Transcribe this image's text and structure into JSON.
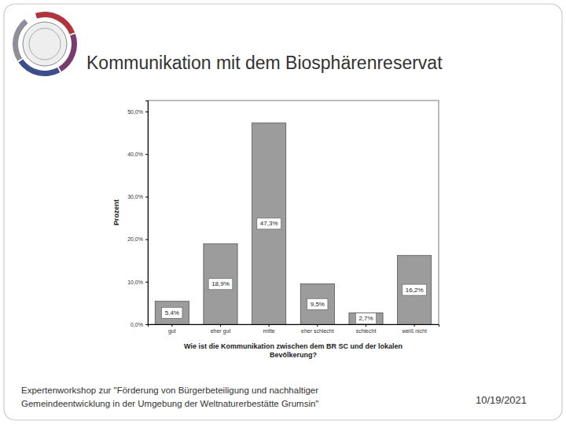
{
  "chart_data": {
    "type": "bar",
    "title": "Kommunikation mit dem Biosphärenreservat",
    "x_label": "Wie ist die Kommunikation zwischen dem BR SC und der lokalen Bevölkerung?",
    "y_label": "Prozent",
    "categories": [
      "gut",
      "eher gut",
      "mitte",
      "eher schlecht",
      "schlecht",
      "weiß nicht"
    ],
    "values": [
      5.4,
      18.9,
      47.3,
      9.5,
      2.7,
      16.2
    ],
    "value_labels": [
      "5,4%",
      "18,9%",
      "47,3%",
      "9,5%",
      "2,7%",
      "16,2%"
    ],
    "color": "#9c9c9c",
    "ylim": [
      0,
      52.6
    ],
    "yticks": [
      {
        "value": 0,
        "label": "0,0%"
      },
      {
        "value": 10,
        "label": "10,0%"
      },
      {
        "value": 20,
        "label": "20,0%"
      },
      {
        "value": 30,
        "label": "30,0%"
      },
      {
        "value": 40,
        "label": "40,0%"
      },
      {
        "value": 50,
        "label": "50,0%"
      }
    ],
    "grid": false,
    "data_labels": true,
    "annotations": [
      "Expertenworkshop zur \"Förderung von Bürgerbeteiligung und nachhaltiger",
      "Gemeindeentwicklung in der Umgebung der Weltnaturerbestätte Grumsin\"",
      "10/19/2021"
    ]
  }
}
